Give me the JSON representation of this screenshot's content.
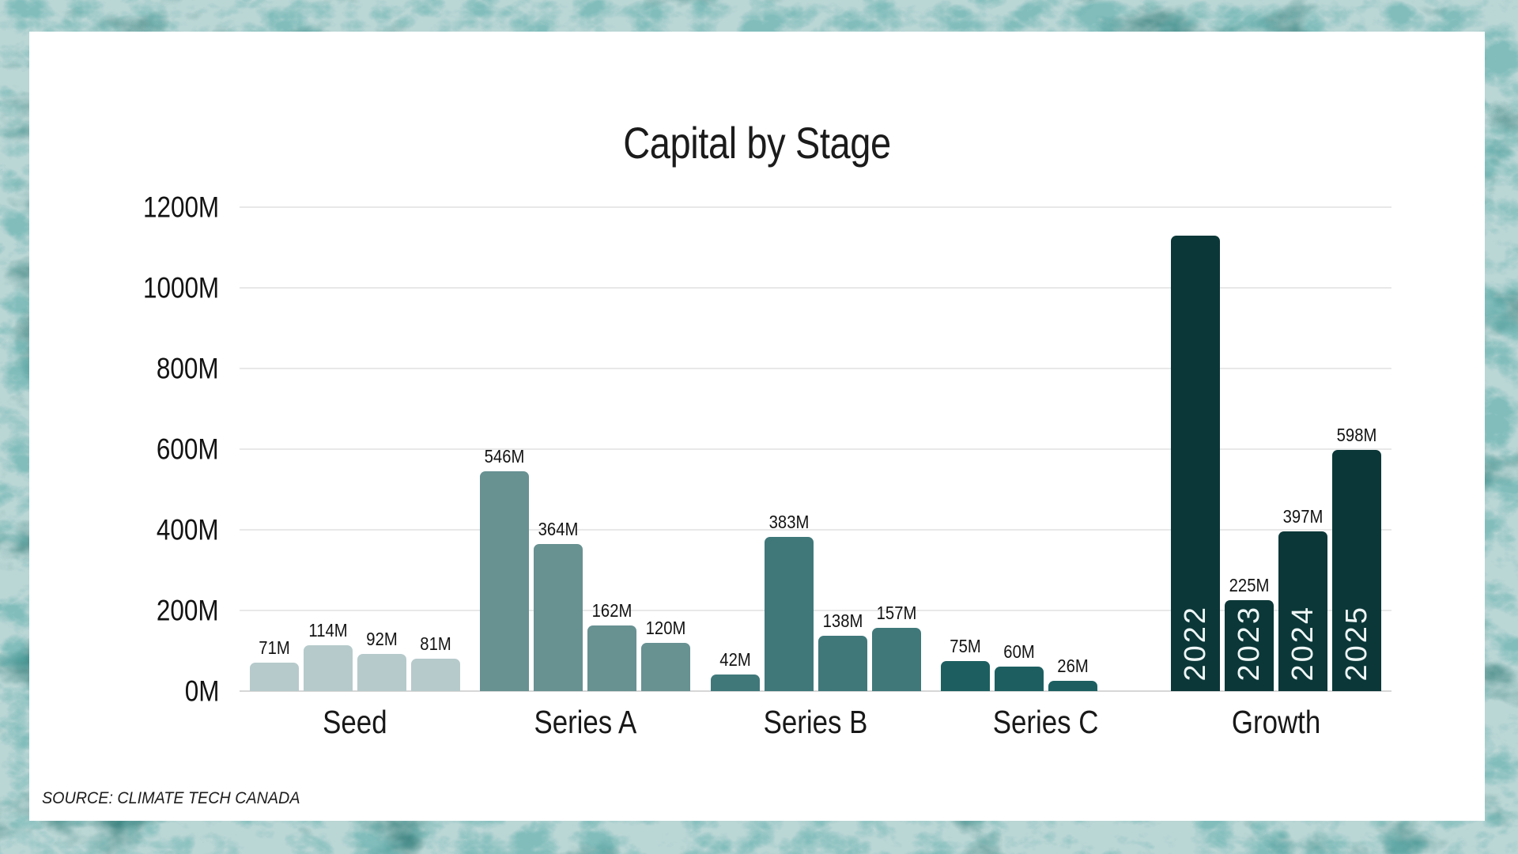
{
  "frame": {
    "border_color": "#377f7c",
    "card_color": "#ffffff"
  },
  "chart_data": {
    "type": "bar",
    "title": "Capital by Stage",
    "source": "SOURCE: CLIMATE TECH CANADA",
    "unit": "M",
    "ylim": [
      0,
      1200
    ],
    "ytick_interval": 200,
    "grid": "horizontal",
    "legend": "none",
    "yticks": [
      {
        "value": 0,
        "label": "0M"
      },
      {
        "value": 200,
        "label": "200M"
      },
      {
        "value": 400,
        "label": "400M"
      },
      {
        "value": 600,
        "label": "600M"
      },
      {
        "value": 800,
        "label": "800M"
      },
      {
        "value": 1000,
        "label": "1000M"
      },
      {
        "value": 1200,
        "label": "1200M"
      }
    ],
    "categories": [
      "Seed",
      "Series A",
      "Series B",
      "Series C",
      "Growth"
    ],
    "groups": [
      {
        "label": "Seed",
        "color": "#b6cacb",
        "bars": [
          {
            "value": 71,
            "label": "71M"
          },
          {
            "value": 114,
            "label": "114M"
          },
          {
            "value": 92,
            "label": "92M"
          },
          {
            "value": 81,
            "label": "81M"
          }
        ]
      },
      {
        "label": "Series A",
        "color": "#689192",
        "bars": [
          {
            "value": 546,
            "label": "546M"
          },
          {
            "value": 364,
            "label": "364M"
          },
          {
            "value": 162,
            "label": "162M"
          },
          {
            "value": 120,
            "label": "120M"
          }
        ]
      },
      {
        "label": "Series B",
        "color": "#40787a",
        "bars": [
          {
            "value": 42,
            "label": "42M"
          },
          {
            "value": 383,
            "label": "383M"
          },
          {
            "value": 138,
            "label": "138M"
          },
          {
            "value": 157,
            "label": "157M"
          }
        ]
      },
      {
        "label": "Series C",
        "color": "#1d5f61",
        "bars": [
          {
            "value": 75,
            "label": "75M"
          },
          {
            "value": 60,
            "label": "60M"
          },
          {
            "value": 26,
            "label": "26M"
          },
          {
            "value": null,
            "label": ""
          }
        ]
      },
      {
        "label": "Growth",
        "color": "#0b3738",
        "bars": [
          {
            "value": 1130,
            "label": "",
            "year_label": "2022"
          },
          {
            "value": 225,
            "label": "225M",
            "year_label": "2023"
          },
          {
            "value": 397,
            "label": "397M",
            "year_label": "2024"
          },
          {
            "value": 598,
            "label": "598M",
            "year_label": "2025"
          }
        ]
      }
    ]
  }
}
